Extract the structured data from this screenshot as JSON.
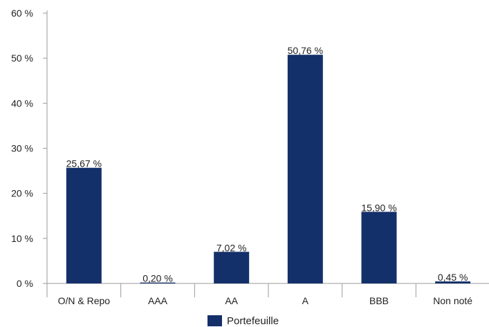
{
  "chart_data": {
    "type": "bar",
    "title": "",
    "xlabel": "",
    "ylabel": "",
    "categories": [
      "O/N & Repo",
      "AAA",
      "AA",
      "A",
      "BBB",
      "Non noté"
    ],
    "series": [
      {
        "name": "Portefeuille",
        "values": [
          25.67,
          0.2,
          7.02,
          50.76,
          15.9,
          0.45
        ],
        "labels": [
          "25,67 %",
          "0,20 %",
          "7,02 %",
          "50,76 %",
          "15,90 %",
          "0,45 %"
        ]
      }
    ],
    "ylim": [
      0,
      60
    ],
    "yticks": [
      0,
      10,
      20,
      30,
      40,
      50,
      60
    ],
    "ytick_labels": [
      "0 %",
      "10 %",
      "20 %",
      "30 %",
      "40 %",
      "50 %",
      "60 %"
    ],
    "grid": false,
    "legend_position": "bottom",
    "colors": {
      "bar": "#14306a",
      "axis": "#9a9a9a",
      "text": "#222222"
    }
  }
}
